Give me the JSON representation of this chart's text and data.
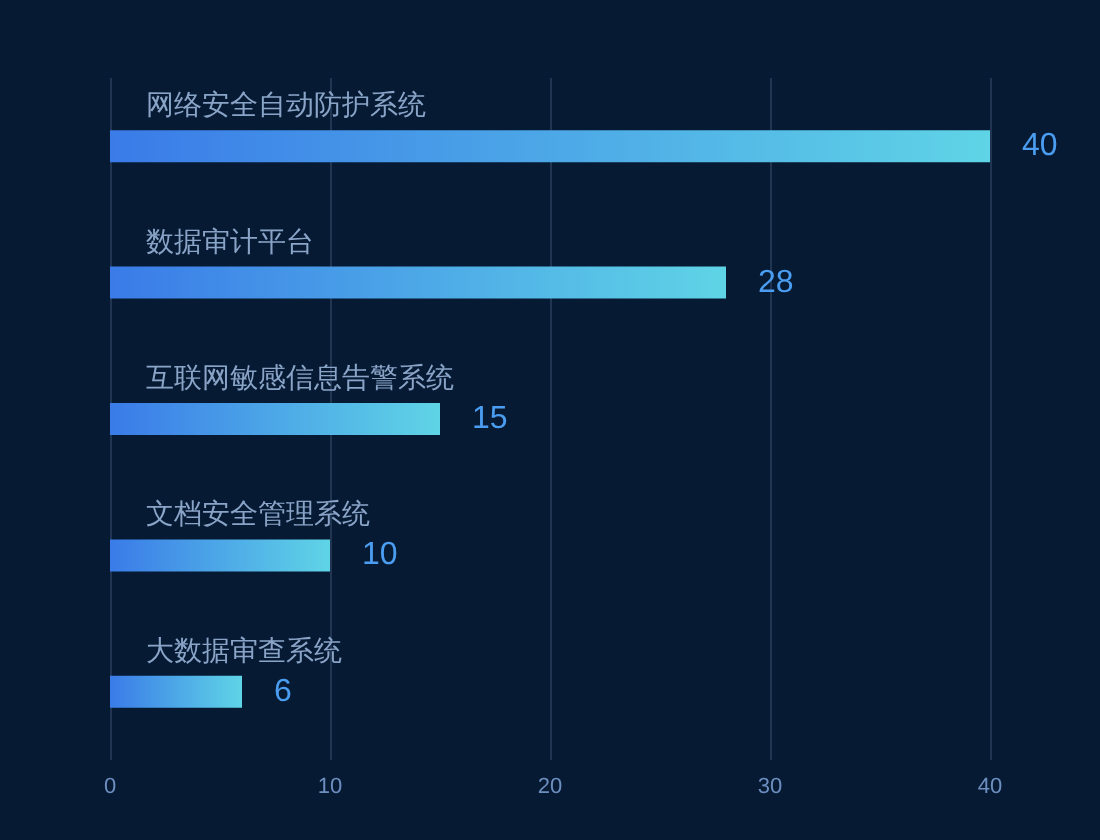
{
  "chart_data": {
    "type": "bar",
    "orientation": "horizontal",
    "categories": [
      "网络安全自动防护系统",
      "数据审计平台",
      "互联网敏感信息告警系统",
      "文档安全管理系统",
      "大数据审查系统"
    ],
    "values": [
      40,
      28,
      15,
      10,
      6
    ],
    "color": "#5fd4e6",
    "data_labels": true,
    "xlim": [
      0,
      40
    ],
    "xticks": [
      0,
      10,
      20,
      30,
      40
    ],
    "grid": "x"
  }
}
